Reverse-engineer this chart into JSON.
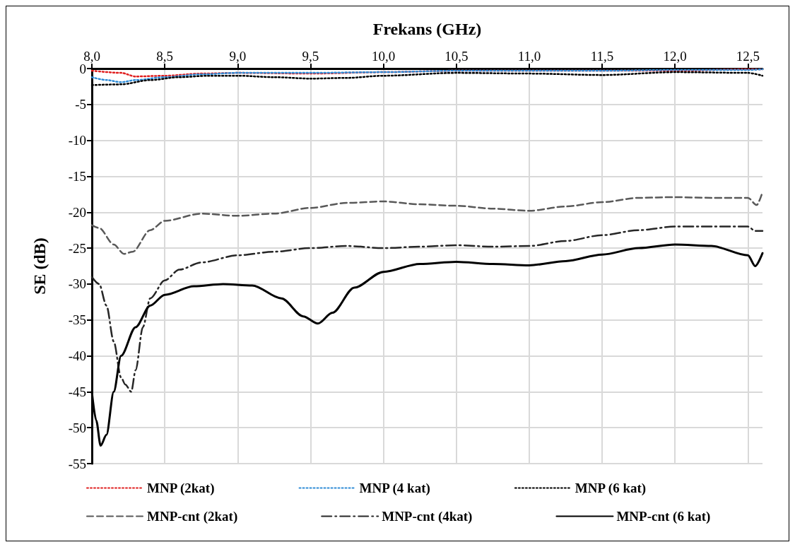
{
  "chart_data": {
    "type": "line",
    "xlabel": "Frekans (GHz)",
    "ylabel": "SE (dB)",
    "xlim": [
      8,
      12.6
    ],
    "ylim": [
      -55,
      0
    ],
    "xticks": [
      {
        "value": 8,
        "label": "8,0"
      },
      {
        "value": 8.5,
        "label": "8,5"
      },
      {
        "value": 9,
        "label": "9,0"
      },
      {
        "value": 9.5,
        "label": "9,5"
      },
      {
        "value": 10,
        "label": "10,0"
      },
      {
        "value": 10.5,
        "label": "10,5"
      },
      {
        "value": 11,
        "label": "11,0"
      },
      {
        "value": 11.5,
        "label": "11,5"
      },
      {
        "value": 12,
        "label": "12,0"
      },
      {
        "value": 12.5,
        "label": "12,5"
      }
    ],
    "yticks": [
      -55,
      -50,
      -45,
      -40,
      -35,
      -30,
      -25,
      -20,
      -15,
      -10,
      -5,
      0
    ],
    "grid": true,
    "legend": "bottom",
    "marker": "none",
    "series": [
      {
        "name": "MNP (2kat)",
        "color": "#e02020",
        "line_style": "dotted",
        "x": [
          8.0,
          8.2,
          8.3,
          8.5,
          8.75,
          9.0,
          9.5,
          10.0,
          10.5,
          11.0,
          11.5,
          12.0,
          12.5,
          12.6
        ],
        "values": [
          -0.3,
          -0.6,
          -1.1,
          -1.0,
          -0.7,
          -0.6,
          -0.7,
          -0.5,
          -0.3,
          -0.3,
          -0.3,
          -0.3,
          -0.1,
          -0.1
        ]
      },
      {
        "name": "MNP (4 kat)",
        "color": "#2e8bd6",
        "line_style": "dotted",
        "x": [
          8.0,
          8.1,
          8.2,
          8.3,
          8.5,
          8.75,
          9.0,
          9.5,
          10.0,
          10.5,
          11.0,
          11.5,
          12.0,
          12.5,
          12.6
        ],
        "values": [
          -1.2,
          -1.6,
          -1.9,
          -1.6,
          -1.2,
          -0.8,
          -0.6,
          -0.6,
          -0.5,
          -0.3,
          -0.3,
          -0.3,
          -0.2,
          -0.2,
          -0.1
        ]
      },
      {
        "name": "MNP (6 kat)",
        "color": "#000000",
        "line_style": "dotted",
        "x": [
          8.0,
          8.2,
          8.4,
          8.6,
          8.8,
          9.0,
          9.25,
          9.5,
          9.75,
          10.0,
          10.5,
          11.0,
          11.5,
          12.0,
          12.5,
          12.6
        ],
        "values": [
          -2.3,
          -2.2,
          -1.6,
          -1.2,
          -1.0,
          -1.0,
          -1.2,
          -1.4,
          -1.3,
          -1.0,
          -0.6,
          -0.7,
          -0.9,
          -0.5,
          -0.6,
          -1.0
        ]
      },
      {
        "name": "MNP-cnt (2kat)",
        "color": "#595959",
        "line_style": "dashed",
        "x": [
          8.0,
          8.05,
          8.15,
          8.22,
          8.28,
          8.4,
          8.5,
          8.75,
          9.0,
          9.25,
          9.5,
          9.75,
          10.0,
          10.25,
          10.5,
          10.75,
          11.0,
          11.25,
          11.5,
          11.75,
          12.0,
          12.25,
          12.5,
          12.56,
          12.6
        ],
        "values": [
          -21.8,
          -22.2,
          -24.5,
          -25.8,
          -25.5,
          -22.5,
          -21.2,
          -20.2,
          -20.5,
          -20.2,
          -19.4,
          -18.7,
          -18.5,
          -18.9,
          -19.1,
          -19.5,
          -19.8,
          -19.2,
          -18.6,
          -18.0,
          -17.9,
          -18.0,
          -18.0,
          -19.0,
          -17.2
        ]
      },
      {
        "name": "MNP-cnt (4kat)",
        "color": "#262626",
        "line_style": "dashdot",
        "x": [
          8.0,
          8.05,
          8.1,
          8.15,
          8.2,
          8.23,
          8.27,
          8.3,
          8.35,
          8.4,
          8.5,
          8.6,
          8.75,
          9.0,
          9.25,
          9.5,
          9.75,
          10.0,
          10.25,
          10.5,
          10.75,
          11.0,
          11.25,
          11.5,
          11.75,
          12.0,
          12.25,
          12.5,
          12.55,
          12.6
        ],
        "values": [
          -29,
          -30,
          -33,
          -38,
          -43,
          -44,
          -45,
          -42,
          -36,
          -32,
          -29.5,
          -28,
          -27,
          -26,
          -25.5,
          -25,
          -24.7,
          -25,
          -24.8,
          -24.6,
          -24.8,
          -24.7,
          -24,
          -23.2,
          -22.5,
          -22,
          -22,
          -22,
          -22.6,
          -22.6
        ]
      },
      {
        "name": "MNP-cnt (6 kat)",
        "color": "#000000",
        "line_style": "solid",
        "x": [
          8.0,
          8.03,
          8.06,
          8.1,
          8.15,
          8.2,
          8.3,
          8.4,
          8.5,
          8.7,
          8.9,
          9.1,
          9.3,
          9.45,
          9.55,
          9.65,
          9.8,
          10.0,
          10.25,
          10.5,
          10.75,
          11.0,
          11.25,
          11.5,
          11.75,
          12.0,
          12.25,
          12.5,
          12.55,
          12.6
        ],
        "values": [
          -45,
          -49,
          -52.5,
          -51,
          -45,
          -40,
          -36,
          -33,
          -31.5,
          -30.3,
          -30,
          -30.2,
          -32,
          -34.5,
          -35.5,
          -34,
          -30.5,
          -28.3,
          -27.2,
          -26.9,
          -27.2,
          -27.4,
          -26.8,
          -25.9,
          -25,
          -24.5,
          -24.7,
          -26,
          -27.5,
          -25.7
        ]
      }
    ]
  }
}
